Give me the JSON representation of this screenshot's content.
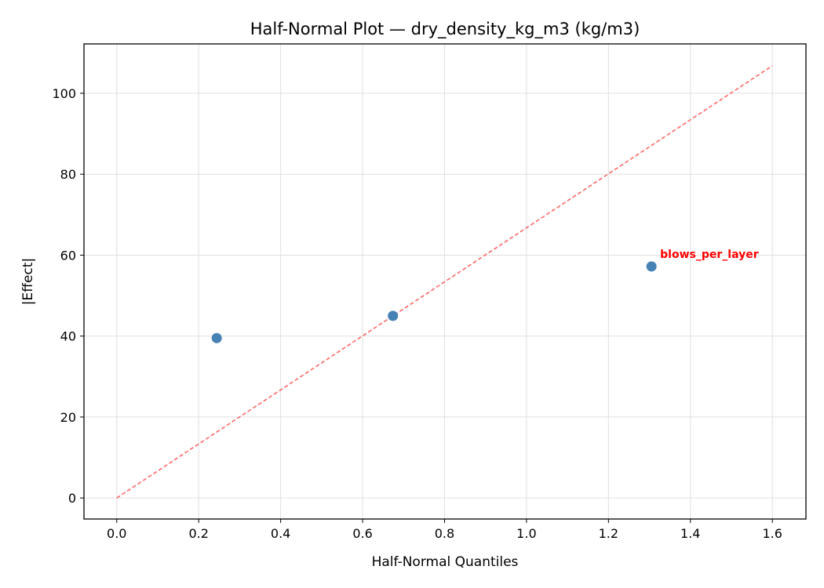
{
  "chart_data": {
    "type": "scatter",
    "title": "Half-Normal Plot — dry_density_kg_m3 (kg/m3)",
    "xlabel": "Half-Normal Quantiles",
    "ylabel": "|Effect|",
    "xlim": [
      -0.08,
      1.682
    ],
    "ylim": [
      -5.2,
      112.2
    ],
    "xticks": [
      0.0,
      0.2,
      0.4,
      0.6,
      0.8,
      1.0,
      1.2,
      1.4,
      1.6
    ],
    "xtick_labels": [
      "0.0",
      "0.2",
      "0.4",
      "0.6",
      "0.8",
      "1.0",
      "1.2",
      "1.4",
      "1.6"
    ],
    "yticks": [
      0,
      20,
      40,
      60,
      80,
      100
    ],
    "ytick_labels": [
      "0",
      "20",
      "40",
      "60",
      "80",
      "100"
    ],
    "grid": true,
    "points": [
      {
        "x": 0.244,
        "y": 39.5,
        "label": ""
      },
      {
        "x": 0.674,
        "y": 45.0,
        "label": ""
      },
      {
        "x": 1.305,
        "y": 57.2,
        "label": "blows_per_layer"
      }
    ],
    "reference_line": {
      "x": [
        0,
        1.6
      ],
      "y": [
        0,
        106.8
      ],
      "style": "dashed"
    },
    "colors": {
      "points": "#4682b4",
      "reference_line": "#ff6666",
      "annotation": "#ff0000"
    }
  }
}
